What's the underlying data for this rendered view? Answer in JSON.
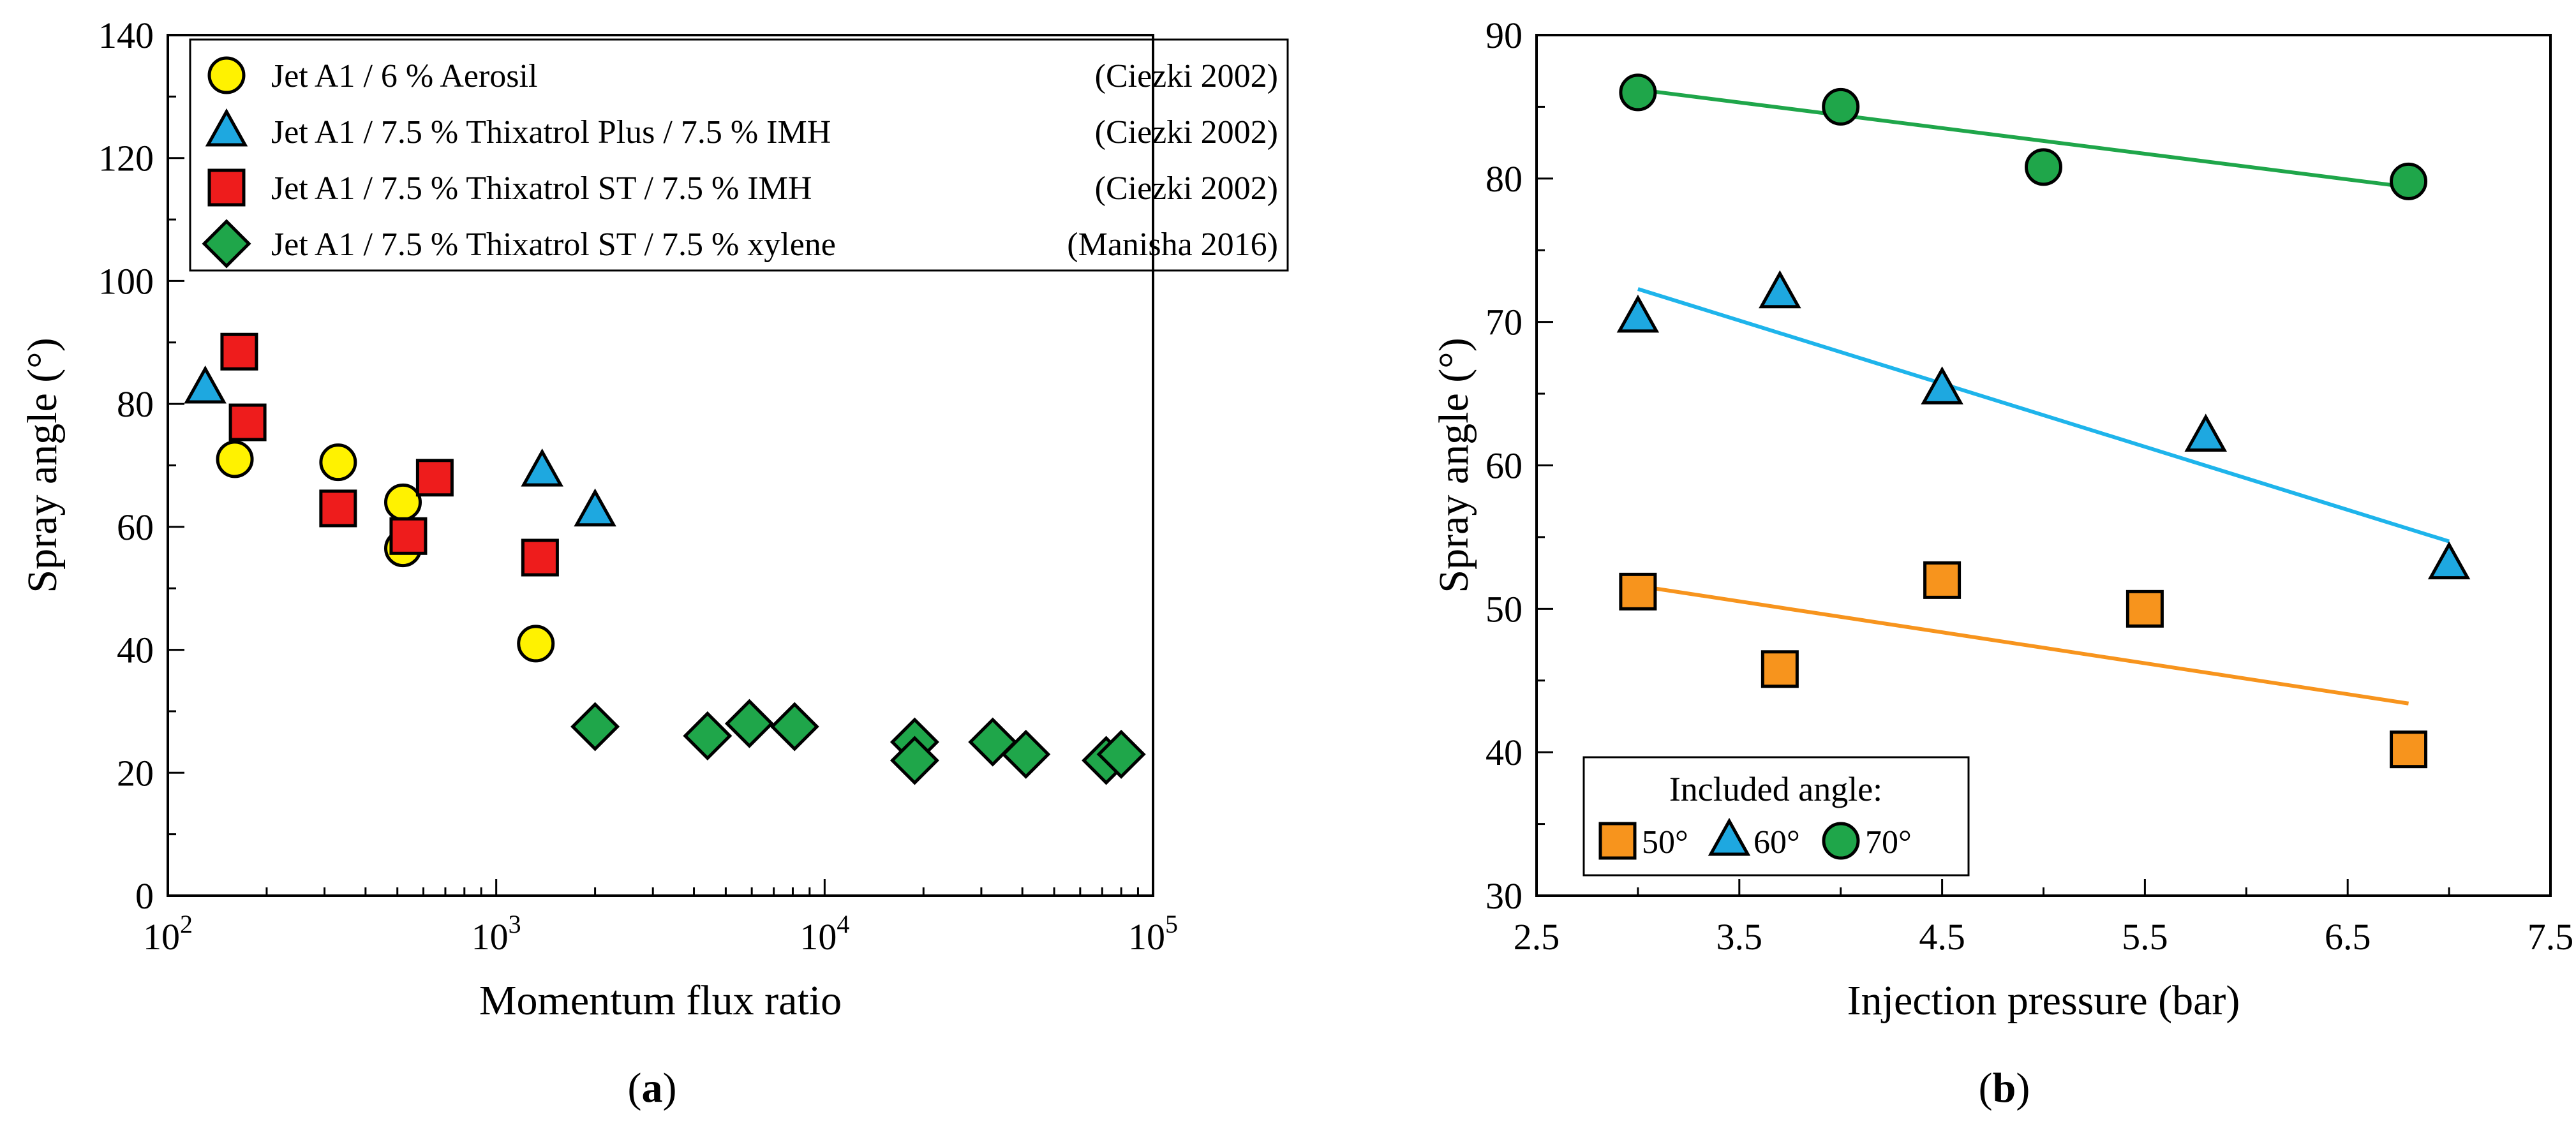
{
  "chart_data": [
    {
      "id": "a",
      "type": "scatter",
      "panel_label": "(a)",
      "panel_letter": "a",
      "xlabel": "Momentum flux ratio",
      "ylabel": "Spray angle (°)",
      "xscale": "log",
      "xlim": [
        100,
        100000
      ],
      "ylim": [
        0,
        140
      ],
      "yticks": [
        0,
        20,
        40,
        60,
        80,
        100,
        120,
        140
      ],
      "xticks": [
        {
          "base": "10",
          "exp": "2",
          "value": 100
        },
        {
          "base": "10",
          "exp": "3",
          "value": 1000
        },
        {
          "base": "10",
          "exp": "4",
          "value": 10000
        },
        {
          "base": "10",
          "exp": "5",
          "value": 100000
        }
      ],
      "grid": false,
      "legend_position": "top",
      "series": [
        {
          "name": "Jet A1 / 6 % Aerosil",
          "source": "(Ciezki 2002)",
          "marker": "circle",
          "color": "#FFF200",
          "points": [
            [
              160,
              71
            ],
            [
              330,
              70.5
            ],
            [
              520,
              64
            ],
            [
              520,
              56.5
            ],
            [
              1320,
              41
            ]
          ]
        },
        {
          "name": "Jet A1 / 7.5 % Thixatrol Plus / 7.5 % IMH",
          "source": "(Ciezki 2002)",
          "marker": "triangle",
          "color": "#1EA8E0",
          "points": [
            [
              130,
              82.5
            ],
            [
              1380,
              69
            ],
            [
              2000,
              62.5
            ]
          ]
        },
        {
          "name": "Jet A1 / 7.5 % Thixatrol ST / 7.5 % IMH",
          "source": "(Ciezki 2002)",
          "marker": "square",
          "color": "#EE1C1C",
          "points": [
            [
              165,
              88.5
            ],
            [
              175,
              77
            ],
            [
              330,
              63
            ],
            [
              540,
              58.5
            ],
            [
              650,
              68
            ],
            [
              1360,
              55
            ]
          ]
        },
        {
          "name": "Jet A1 / 7.5 % Thixatrol ST / 7.5 % xylene",
          "source": "(Manisha 2016)",
          "marker": "diamond",
          "color": "#1FA64A",
          "points": [
            [
              2000,
              27.5
            ],
            [
              4400,
              26
            ],
            [
              5900,
              28
            ],
            [
              8100,
              27.5
            ],
            [
              18800,
              25
            ],
            [
              18800,
              22
            ],
            [
              32500,
              25
            ],
            [
              41000,
              23
            ],
            [
              72000,
              22
            ],
            [
              80000,
              23
            ]
          ]
        }
      ]
    },
    {
      "id": "b",
      "type": "scatter",
      "panel_label": "(b)",
      "panel_letter": "b",
      "xlabel": "Injection pressure (bar)",
      "ylabel": "Spray angle (°)",
      "xlim": [
        2.5,
        7.5
      ],
      "ylim": [
        30,
        90
      ],
      "xticks": [
        "2.5",
        "3.5",
        "4.5",
        "5.5",
        "6.5",
        "7.5"
      ],
      "yticks": [
        30,
        40,
        50,
        60,
        70,
        80,
        90
      ],
      "grid": false,
      "legend_position": "bottom-left",
      "legend_title": "Included angle:",
      "series": [
        {
          "name": "50°",
          "marker": "square",
          "color": "#F7941D",
          "line_color": "#F7941D",
          "points": [
            [
              3.0,
              51.2
            ],
            [
              3.7,
              45.8
            ],
            [
              4.5,
              52
            ],
            [
              5.5,
              50
            ],
            [
              6.8,
              40.2
            ]
          ],
          "fit": [
            [
              3.0,
              51.6
            ],
            [
              6.8,
              43.4
            ]
          ]
        },
        {
          "name": "60°",
          "marker": "triangle",
          "color": "#1EA8E0",
          "line_color": "#1EB4EB",
          "points": [
            [
              3.0,
              70.3
            ],
            [
              3.7,
              72
            ],
            [
              4.5,
              65.3
            ],
            [
              5.8,
              62
            ],
            [
              7.0,
              53.1
            ]
          ],
          "fit": [
            [
              3.0,
              72.3
            ],
            [
              7.0,
              54.7
            ]
          ]
        },
        {
          "name": "70°",
          "marker": "circle",
          "color": "#1FA64A",
          "line_color": "#1FA64A",
          "points": [
            [
              3.0,
              86
            ],
            [
              4.0,
              85
            ],
            [
              5.0,
              80.8
            ],
            [
              6.8,
              79.8
            ]
          ],
          "fit": [
            [
              3.0,
              86.2
            ],
            [
              6.8,
              79.4
            ]
          ]
        }
      ]
    }
  ]
}
